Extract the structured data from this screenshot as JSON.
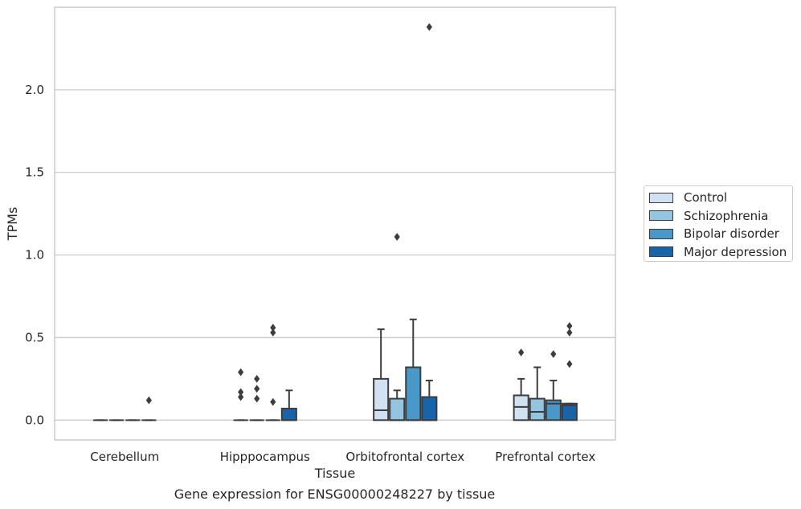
{
  "chart_data": {
    "type": "box",
    "title": "",
    "caption": "Gene expression for ENSG00000248227 by tissue",
    "xlabel": "Tissue",
    "ylabel": "TPMs",
    "ylim": [
      -0.12,
      2.5
    ],
    "yticks": [
      0.0,
      0.5,
      1.0,
      1.5,
      2.0
    ],
    "ytick_labels": [
      "0.0",
      "0.5",
      "1.0",
      "1.5",
      "2.0"
    ],
    "grid": "horizontal",
    "legend_position": "right",
    "categories": [
      "Cerebellum",
      "Hipppocampus",
      "Orbitofrontal cortex",
      "Prefrontal cortex"
    ],
    "series": [
      {
        "name": "Control",
        "color": "#d0e1f2",
        "boxes": [
          {
            "q1": 0.0,
            "median": 0.0,
            "q3": 0.0,
            "whislo": 0.0,
            "whishi": 0.0,
            "fliers": []
          },
          {
            "q1": 0.0,
            "median": 0.0,
            "q3": 0.0,
            "whislo": 0.0,
            "whishi": 0.0,
            "fliers": [
              0.14,
              0.17,
              0.29
            ]
          },
          {
            "q1": 0.0,
            "median": 0.06,
            "q3": 0.25,
            "whislo": 0.0,
            "whishi": 0.55,
            "fliers": []
          },
          {
            "q1": 0.0,
            "median": 0.08,
            "q3": 0.15,
            "whislo": 0.0,
            "whishi": 0.25,
            "fliers": [
              0.41
            ]
          }
        ]
      },
      {
        "name": "Schizophrenia",
        "color": "#94c4df",
        "boxes": [
          {
            "q1": 0.0,
            "median": 0.0,
            "q3": 0.0,
            "whislo": 0.0,
            "whishi": 0.0,
            "fliers": []
          },
          {
            "q1": 0.0,
            "median": 0.0,
            "q3": 0.0,
            "whislo": 0.0,
            "whishi": 0.0,
            "fliers": [
              0.13,
              0.19,
              0.25
            ]
          },
          {
            "q1": 0.0,
            "median": 0.0,
            "q3": 0.13,
            "whislo": 0.0,
            "whishi": 0.18,
            "fliers": [
              1.11
            ]
          },
          {
            "q1": 0.0,
            "median": 0.05,
            "q3": 0.13,
            "whislo": 0.0,
            "whishi": 0.32,
            "fliers": []
          }
        ]
      },
      {
        "name": "Bipolar disorder",
        "color": "#4a98c9",
        "boxes": [
          {
            "q1": 0.0,
            "median": 0.0,
            "q3": 0.0,
            "whislo": 0.0,
            "whishi": 0.0,
            "fliers": []
          },
          {
            "q1": 0.0,
            "median": 0.0,
            "q3": 0.0,
            "whislo": 0.0,
            "whishi": 0.0,
            "fliers": [
              0.11,
              0.53,
              0.56
            ]
          },
          {
            "q1": 0.0,
            "median": 0.0,
            "q3": 0.32,
            "whislo": 0.0,
            "whishi": 0.61,
            "fliers": []
          },
          {
            "q1": 0.0,
            "median": 0.1,
            "q3": 0.12,
            "whislo": 0.0,
            "whishi": 0.24,
            "fliers": [
              0.4
            ]
          }
        ]
      },
      {
        "name": "Major depression",
        "color": "#1764ab",
        "boxes": [
          {
            "q1": 0.0,
            "median": 0.0,
            "q3": 0.0,
            "whislo": 0.0,
            "whishi": 0.0,
            "fliers": [
              0.12
            ]
          },
          {
            "q1": 0.0,
            "median": 0.0,
            "q3": 0.07,
            "whislo": 0.0,
            "whishi": 0.18,
            "fliers": []
          },
          {
            "q1": 0.0,
            "median": 0.0,
            "q3": 0.14,
            "whislo": 0.0,
            "whishi": 0.24,
            "fliers": [
              2.38
            ]
          },
          {
            "q1": 0.0,
            "median": 0.09,
            "q3": 0.1,
            "whislo": 0.0,
            "whishi": 0.1,
            "fliers": [
              0.34,
              0.53,
              0.57
            ]
          }
        ]
      }
    ]
  }
}
